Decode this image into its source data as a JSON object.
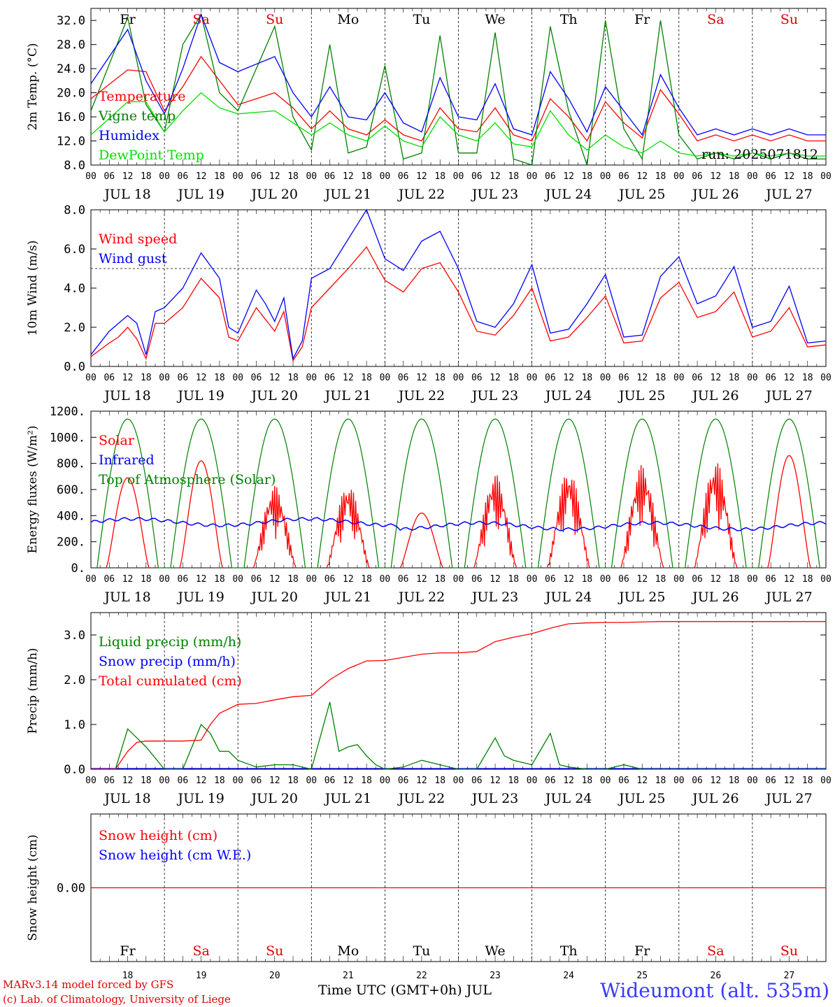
{
  "chart_data": [
    {
      "type": "line",
      "ylabel": "2m Temp. (°C)",
      "ylim": [
        8,
        34
      ],
      "yticks": [
        "8.0",
        "12.0",
        "16.0",
        "20.0",
        "24.0",
        "28.0",
        "32.0"
      ],
      "annotation": "run: 2025071812",
      "legend": [
        {
          "label": "Temperature",
          "color": "#ff0000"
        },
        {
          "label": "Vigne temp",
          "color": "#008000"
        },
        {
          "label": "Humidex",
          "color": "#0000ff"
        },
        {
          "label": "DewPoint Temp",
          "color": "#00e000"
        }
      ],
      "series": [
        {
          "name": "Temperature",
          "color": "#ff0000",
          "x": [
            0,
            12,
            18,
            24,
            30,
            36,
            42,
            48,
            60,
            66,
            72,
            78,
            84,
            90,
            96,
            102,
            108,
            114,
            120,
            126,
            132,
            138,
            144,
            150,
            156,
            162,
            168,
            174,
            180,
            186,
            192,
            198,
            204,
            210,
            216,
            222,
            228,
            234,
            240
          ],
          "y": [
            19,
            23.8,
            23.5,
            17,
            21,
            26,
            22,
            18,
            20,
            17.5,
            14,
            17,
            14,
            13,
            15.5,
            13,
            12,
            17.5,
            14,
            13.5,
            17.5,
            13,
            12,
            19,
            16,
            12,
            18.5,
            15,
            12.5,
            20.5,
            16.5,
            12,
            13,
            12,
            13,
            12,
            13,
            12,
            12
          ]
        },
        {
          "name": "Vigne temp",
          "color": "#008000",
          "x": [
            0,
            12,
            18,
            24,
            30,
            36,
            42,
            48,
            60,
            66,
            72,
            78,
            84,
            90,
            96,
            102,
            108,
            114,
            120,
            126,
            132,
            138,
            144,
            150,
            156,
            162,
            168,
            174,
            180,
            186,
            192,
            198,
            204,
            210,
            216,
            222,
            228,
            234,
            240
          ],
          "y": [
            17,
            32.5,
            18,
            13.5,
            28,
            33,
            20,
            17,
            31,
            16,
            10.5,
            28,
            10,
            11,
            24.5,
            9,
            10,
            29.5,
            10,
            10,
            30,
            9,
            8,
            31,
            17,
            8,
            32,
            14,
            9,
            32,
            13,
            9,
            10,
            9,
            10,
            9,
            10,
            9,
            9
          ]
        },
        {
          "name": "Humidex",
          "color": "#0000ff",
          "x": [
            0,
            12,
            18,
            24,
            30,
            36,
            42,
            48,
            60,
            66,
            72,
            78,
            84,
            90,
            96,
            102,
            108,
            114,
            120,
            126,
            132,
            138,
            144,
            150,
            156,
            162,
            168,
            174,
            180,
            186,
            192,
            198,
            204,
            210,
            216,
            222,
            228,
            234,
            240
          ],
          "y": [
            21.5,
            30.5,
            22,
            16.5,
            24,
            33,
            25,
            23.5,
            26,
            20,
            16,
            21,
            16,
            15.5,
            20,
            15,
            13.5,
            22.5,
            16,
            15.5,
            21.5,
            14,
            13,
            23.5,
            19,
            13.5,
            21,
            17,
            13,
            23,
            17.5,
            13,
            14,
            13,
            14,
            13,
            14,
            13,
            13
          ]
        },
        {
          "name": "DewPoint Temp",
          "color": "#00e000",
          "x": [
            0,
            12,
            18,
            24,
            30,
            36,
            42,
            48,
            60,
            66,
            72,
            78,
            84,
            90,
            96,
            102,
            108,
            114,
            120,
            126,
            132,
            138,
            144,
            150,
            156,
            162,
            168,
            174,
            180,
            186,
            192,
            198,
            204,
            210,
            216,
            222,
            228,
            234,
            240
          ],
          "y": [
            13,
            18.5,
            18.5,
            13.5,
            17,
            20,
            17.5,
            16.5,
            17,
            15,
            13,
            15,
            13,
            12,
            14.5,
            12,
            11,
            16,
            13,
            12,
            15,
            11.5,
            11,
            17,
            13,
            10.5,
            13,
            11,
            10,
            12,
            10,
            9.5,
            10,
            9.5,
            10,
            9.5,
            10,
            9.5,
            9.5
          ]
        }
      ]
    },
    {
      "type": "line",
      "ylabel": "10m Wind (m/s)",
      "ylim": [
        0,
        8
      ],
      "yticks": [
        "0.0",
        "2.0",
        "4.0",
        "6.0",
        "8.0"
      ],
      "reference_line": 5.0,
      "legend": [
        {
          "label": "Wind speed",
          "color": "#ff0000"
        },
        {
          "label": "Wind gust",
          "color": "#0000ff"
        }
      ],
      "series": [
        {
          "name": "Wind speed",
          "color": "#ff0000",
          "x": [
            0,
            6,
            9,
            12,
            15,
            18,
            21,
            24,
            30,
            36,
            42,
            45,
            48,
            54,
            57,
            60,
            63,
            66,
            69,
            72,
            78,
            84,
            90,
            96,
            102,
            108,
            114,
            120,
            126,
            132,
            138,
            144,
            150,
            156,
            162,
            168,
            174,
            180,
            186,
            192,
            198,
            204,
            210,
            216,
            222,
            228,
            234,
            240
          ],
          "y": [
            0.5,
            1.2,
            1.5,
            2.0,
            1.4,
            0.4,
            2.2,
            2.2,
            3.0,
            4.5,
            3.5,
            1.5,
            1.3,
            3.0,
            2.4,
            1.8,
            2.8,
            0.3,
            1.0,
            3.0,
            4.0,
            5.0,
            6.1,
            4.4,
            3.8,
            5.0,
            5.3,
            3.8,
            1.8,
            1.6,
            2.6,
            4.0,
            1.3,
            1.5,
            2.5,
            3.6,
            1.2,
            1.3,
            3.5,
            4.3,
            2.5,
            2.8,
            3.8,
            1.5,
            1.8,
            3.0,
            1.0,
            1.1
          ]
        },
        {
          "name": "Wind gust",
          "color": "#0000ff",
          "x": [
            0,
            6,
            9,
            12,
            15,
            18,
            21,
            24,
            30,
            36,
            42,
            45,
            48,
            54,
            57,
            60,
            63,
            66,
            69,
            72,
            78,
            84,
            90,
            96,
            102,
            108,
            114,
            120,
            126,
            132,
            138,
            144,
            150,
            156,
            162,
            168,
            174,
            180,
            186,
            192,
            198,
            204,
            210,
            216,
            222,
            228,
            234,
            240
          ],
          "y": [
            0.6,
            1.8,
            2.2,
            2.6,
            2.2,
            0.6,
            2.8,
            3.0,
            4.0,
            5.8,
            4.5,
            2.0,
            1.7,
            3.9,
            3.2,
            2.3,
            3.5,
            0.4,
            1.3,
            4.5,
            5.0,
            6.5,
            8.0,
            5.5,
            4.9,
            6.4,
            6.9,
            5.0,
            2.3,
            2.0,
            3.2,
            5.2,
            1.7,
            1.9,
            3.2,
            4.7,
            1.5,
            1.6,
            4.6,
            5.6,
            3.2,
            3.6,
            5.1,
            2.0,
            2.3,
            4.1,
            1.2,
            1.3
          ]
        }
      ]
    },
    {
      "type": "line",
      "ylabel": "Energy fluxes (W/m²)",
      "ylim": [
        0,
        1200
      ],
      "yticks": [
        "0.",
        "200.",
        "400.",
        "600.",
        "800.",
        "1000.",
        "1200."
      ],
      "legend": [
        {
          "label": "Solar",
          "color": "#ff0000"
        },
        {
          "label": "Infrared",
          "color": "#0000ff"
        },
        {
          "label": "Top of Atmosphere (Solar)",
          "color": "#008000"
        }
      ],
      "toa_peak": 1140,
      "solar_peaks": [
        690,
        820,
        630,
        640,
        420,
        720,
        750,
        790,
        820,
        860
      ],
      "infrared_level": 350
    },
    {
      "type": "line",
      "ylabel": "Precip (mm/h)",
      "ylim": [
        0,
        3.5
      ],
      "yticks": [
        "0.0",
        "1.0",
        "2.0",
        "3.0"
      ],
      "legend": [
        {
          "label": "Liquid precip (mm/h)",
          "color": "#008000"
        },
        {
          "label": "Snow precip (mm/h)",
          "color": "#0000ff"
        },
        {
          "label": "Total cumulated (cm)",
          "color": "#ff0000"
        }
      ],
      "series": [
        {
          "name": "Liquid precip (mm/h)",
          "color": "#008000",
          "x": [
            0,
            8,
            12,
            15,
            18,
            24,
            30,
            36,
            39,
            42,
            45,
            48,
            54,
            60,
            66,
            72,
            78,
            81,
            84,
            87,
            90,
            93,
            96,
            102,
            108,
            114,
            120,
            126,
            132,
            135,
            138,
            144,
            150,
            153,
            156,
            162,
            168,
            174,
            180,
            186,
            192,
            198,
            204,
            210,
            216,
            222,
            228,
            234,
            240
          ],
          "y": [
            0,
            0,
            0.9,
            0.7,
            0.5,
            0,
            0,
            1.0,
            0.8,
            0.4,
            0.4,
            0.2,
            0.05,
            0.1,
            0.1,
            0,
            1.5,
            0.4,
            0.5,
            0.55,
            0.3,
            0.1,
            0,
            0.05,
            0.2,
            0.1,
            0,
            0,
            0.7,
            0.3,
            0.2,
            0.1,
            0.8,
            0.1,
            0.05,
            0,
            0,
            0.1,
            0,
            0,
            0,
            0,
            0,
            0,
            0,
            0,
            0,
            0,
            0
          ]
        },
        {
          "name": "Total cumulated (cm)",
          "color": "#ff0000",
          "x": [
            0,
            8,
            12,
            15,
            18,
            24,
            30,
            36,
            39,
            42,
            48,
            54,
            60,
            66,
            72,
            78,
            84,
            90,
            96,
            102,
            108,
            114,
            120,
            126,
            132,
            138,
            144,
            150,
            156,
            162,
            168,
            174,
            180,
            186,
            192,
            198,
            204,
            210,
            216,
            222,
            228,
            234,
            240
          ],
          "y": [
            0,
            0,
            0.4,
            0.6,
            0.63,
            0.63,
            0.63,
            0.65,
            1.0,
            1.25,
            1.45,
            1.47,
            1.55,
            1.62,
            1.65,
            2.0,
            2.25,
            2.42,
            2.43,
            2.5,
            2.57,
            2.6,
            2.6,
            2.63,
            2.85,
            2.95,
            3.03,
            3.15,
            3.25,
            3.27,
            3.28,
            3.28,
            3.29,
            3.3,
            3.3,
            3.3,
            3.3,
            3.3,
            3.3,
            3.3,
            3.3,
            3.3,
            3.3
          ]
        }
      ]
    },
    {
      "type": "line",
      "ylabel": "Snow height (cm)",
      "yticks": [
        "0.00"
      ],
      "legend": [
        {
          "label": "Snow height (cm)",
          "color": "#ff0000"
        },
        {
          "label": "Snow height (cm W.E.)",
          "color": "#0000ff"
        }
      ],
      "series": [
        {
          "name": "Snow height (cm)",
          "color": "#ff0000",
          "x": [
            0,
            240
          ],
          "y": [
            0,
            0
          ]
        }
      ]
    }
  ],
  "x_axis": {
    "hour_labels": [
      "00",
      "06",
      "12",
      "18"
    ],
    "end_label": "00",
    "dates": [
      "JUL 18",
      "JUL 19",
      "JUL 20",
      "JUL 21",
      "JUL 22",
      "JUL 23",
      "JUL 24",
      "JUL 25",
      "JUL 26",
      "JUL 27"
    ],
    "weekdays": [
      "Fr",
      "Sa",
      "Su",
      "Mo",
      "Tu",
      "We",
      "Th",
      "Fr",
      "Sa",
      "Su"
    ],
    "day_numbers": [
      "18",
      "19",
      "20",
      "21",
      "22",
      "23",
      "24",
      "25",
      "26",
      "27"
    ],
    "weekend_color": "#e00000",
    "weekday_color": "#000000"
  },
  "footer": {
    "credit_line1": "MARv3.14 model forced by GFS",
    "credit_line2": "(c) Lab. of Climatology, University of Liege",
    "x_title": "Time UTC (GMT+0h) JUL",
    "station": "Wideumont (alt. 535m)"
  }
}
